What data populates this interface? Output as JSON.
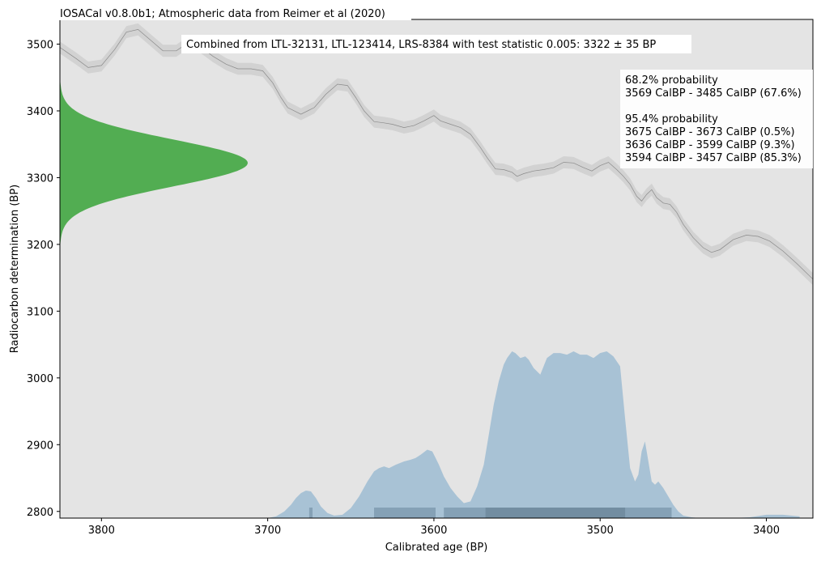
{
  "chart_data": {
    "type": "area",
    "title": "IOSACal v0.8.0b1; Atmospheric data from Reimer et al (2020)",
    "xlabel": "Calibrated age (BP)",
    "ylabel": "Radiocarbon determination (BP)",
    "xlim": [
      3825,
      3372
    ],
    "ylim": [
      2790,
      3537
    ],
    "x_ticks": [
      3800,
      3700,
      3600,
      3500,
      3400
    ],
    "y_ticks": [
      2800,
      2900,
      3000,
      3100,
      3200,
      3300,
      3400,
      3500
    ],
    "grid": false,
    "annotation_combined": "Combined from LTL-32131, LTL-123414, LRS-8384 with test statistic 0.005: 3322 ± 35 BP",
    "ranges_text": [
      "68.2% probability",
      "3569 CalBP - 3485 CalBP (67.6%)",
      "",
      "95.4% probability",
      "3675 CalBP - 3673 CalBP (0.5%)",
      "3636 CalBP - 3599 CalBP (9.3%)",
      "3594 CalBP - 3457 CalBP (85.3%)"
    ],
    "radiocarbon_date": {
      "mean": 3322,
      "sigma": 35
    },
    "calibration_curve": {
      "x": [
        3825,
        3815,
        3808,
        3800,
        3792,
        3785,
        3778,
        3770,
        3763,
        3755,
        3748,
        3740,
        3733,
        3725,
        3718,
        3710,
        3703,
        3697,
        3692,
        3688,
        3680,
        3672,
        3665,
        3658,
        3652,
        3647,
        3642,
        3636,
        3630,
        3625,
        3618,
        3612,
        3606,
        3600,
        3596,
        3590,
        3584,
        3578,
        3572,
        3568,
        3563,
        3558,
        3553,
        3550,
        3546,
        3540,
        3534,
        3528,
        3522,
        3516,
        3510,
        3505,
        3500,
        3495,
        3490,
        3486,
        3482,
        3478,
        3475,
        3472,
        3469,
        3466,
        3462,
        3458,
        3454,
        3450,
        3444,
        3438,
        3433,
        3428,
        3420,
        3412,
        3405,
        3398,
        3390,
        3382,
        3372
      ],
      "y": [
        3495,
        3478,
        3465,
        3468,
        3492,
        3518,
        3522,
        3505,
        3490,
        3490,
        3502,
        3495,
        3482,
        3470,
        3463,
        3463,
        3460,
        3442,
        3420,
        3405,
        3395,
        3405,
        3425,
        3440,
        3438,
        3420,
        3400,
        3384,
        3382,
        3380,
        3375,
        3378,
        3385,
        3393,
        3385,
        3380,
        3375,
        3365,
        3345,
        3330,
        3313,
        3312,
        3308,
        3302,
        3306,
        3310,
        3312,
        3315,
        3323,
        3322,
        3315,
        3310,
        3318,
        3323,
        3312,
        3302,
        3290,
        3272,
        3265,
        3275,
        3282,
        3270,
        3262,
        3260,
        3248,
        3230,
        3210,
        3195,
        3188,
        3192,
        3207,
        3214,
        3212,
        3205,
        3190,
        3172,
        3148
      ],
      "band_halfwidth": 9
    },
    "calibrated_distribution": {
      "x": [
        3720,
        3710,
        3700,
        3695,
        3690,
        3686,
        3683,
        3680,
        3677,
        3674,
        3671,
        3668,
        3664,
        3660,
        3655,
        3650,
        3645,
        3640,
        3636,
        3633,
        3630,
        3627,
        3623,
        3618,
        3614,
        3611,
        3608,
        3604,
        3601,
        3599,
        3597,
        3594,
        3590,
        3586,
        3582,
        3578,
        3574,
        3570,
        3567,
        3564,
        3561,
        3558,
        3556,
        3553,
        3551,
        3548,
        3545,
        3543,
        3540,
        3536,
        3532,
        3528,
        3524,
        3520,
        3516,
        3512,
        3508,
        3504,
        3500,
        3496,
        3492,
        3488,
        3485,
        3482,
        3479,
        3477,
        3475,
        3473,
        3471,
        3469,
        3467,
        3465,
        3462,
        3459,
        3456,
        3453,
        3450,
        3445,
        3440,
        3430,
        3420,
        3410,
        3400,
        3390,
        3380
      ],
      "p": [
        0,
        0,
        0,
        0.01,
        0.04,
        0.08,
        0.12,
        0.15,
        0.165,
        0.16,
        0.12,
        0.07,
        0.03,
        0.015,
        0.02,
        0.06,
        0.13,
        0.22,
        0.28,
        0.3,
        0.31,
        0.3,
        0.32,
        0.34,
        0.35,
        0.36,
        0.38,
        0.41,
        0.4,
        0.36,
        0.32,
        0.25,
        0.18,
        0.13,
        0.09,
        0.1,
        0.19,
        0.32,
        0.5,
        0.68,
        0.82,
        0.92,
        0.96,
        1.0,
        0.99,
        0.96,
        0.97,
        0.95,
        0.9,
        0.86,
        0.96,
        0.99,
        0.99,
        0.98,
        1.0,
        0.98,
        0.98,
        0.96,
        0.99,
        1.0,
        0.97,
        0.91,
        0.6,
        0.3,
        0.22,
        0.26,
        0.4,
        0.46,
        0.34,
        0.22,
        0.2,
        0.22,
        0.18,
        0.13,
        0.08,
        0.04,
        0.015,
        0.005,
        0,
        0,
        0,
        0.005,
        0.02,
        0.02,
        0.01
      ]
    },
    "hpd_68": [
      [
        3569,
        3485
      ]
    ],
    "hpd_95": [
      [
        3675,
        3673
      ],
      [
        3636,
        3599
      ],
      [
        3594,
        3457
      ]
    ],
    "colors": {
      "plot_background": "#e4e4e4",
      "radiocarbon_fill": "#52ad52",
      "calibrated_fill": "#a8c2d5",
      "hpd_95_bar": "#7f9bb0",
      "hpd_68_bar": "#6c8799",
      "curve_band": "#d2d2d2",
      "curve_line": "#8a8a8a",
      "text_box": "#ffffff"
    }
  }
}
